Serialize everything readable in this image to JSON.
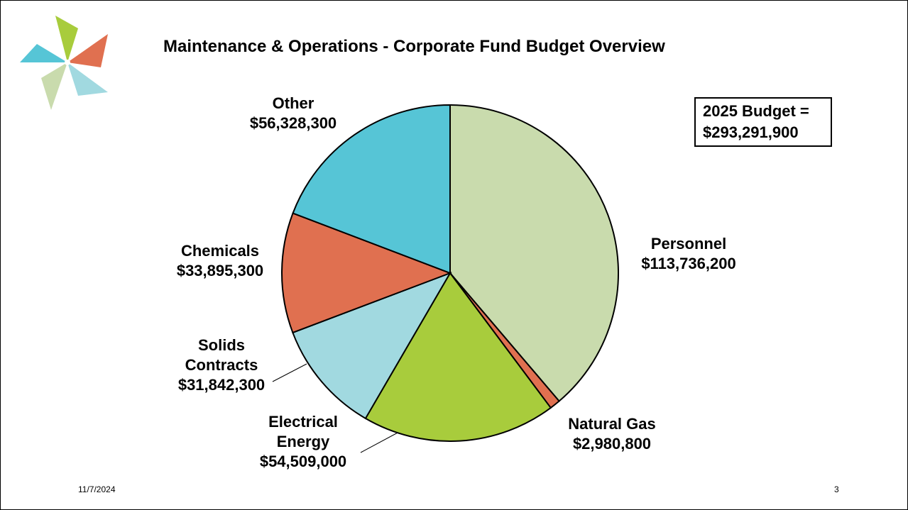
{
  "chart_data": {
    "type": "pie",
    "title": "Maintenance & Operations - Corporate Fund Budget Overview",
    "annotation": "2025 Budget = $293,291,900",
    "categories": [
      "Personnel",
      "Natural Gas",
      "Electrical Energy",
      "Solids Contracts",
      "Chemicals",
      "Other"
    ],
    "values": [
      113736200,
      2980800,
      54509000,
      31842300,
      33895300,
      56328300
    ],
    "value_labels": [
      "$113,736,200",
      "$2,980,800",
      "$54,509,000",
      "$31,842,300",
      "$33,895,300",
      "$56,328,300"
    ],
    "colors": [
      "#c9dbad",
      "#e07050",
      "#a8cc3c",
      "#a1d9e0",
      "#e07050",
      "#56c5d6"
    ]
  },
  "footer": {
    "date": "11/7/2024",
    "page": "3"
  }
}
